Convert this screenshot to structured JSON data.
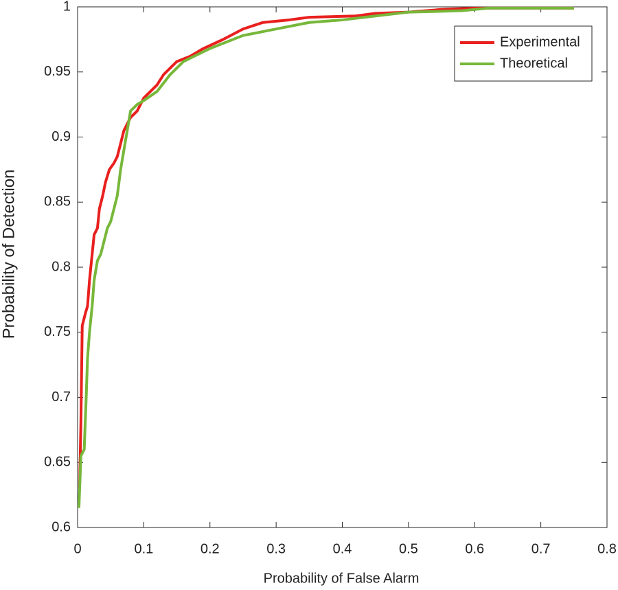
{
  "chart_data": {
    "type": "line",
    "xlabel": "Probability of False Alarm",
    "ylabel": "Probability of Detection",
    "xlim": [
      0,
      0.8
    ],
    "xticks": [
      0,
      0.1,
      0.2,
      0.3,
      0.4,
      0.5,
      0.6,
      0.7,
      0.8
    ],
    "ylim": [
      0.6,
      1
    ],
    "yticks": [
      0.6,
      0.65,
      0.7,
      0.75,
      0.8,
      0.85,
      0.9,
      0.95,
      1
    ],
    "grid": false,
    "legend": "northeast",
    "series": [
      {
        "name": "Experimental",
        "color": "#e8201e",
        "x": [
          0.003,
          0.005,
          0.007,
          0.012,
          0.015,
          0.018,
          0.022,
          0.025,
          0.03,
          0.033,
          0.038,
          0.042,
          0.048,
          0.055,
          0.06,
          0.065,
          0.07,
          0.075,
          0.08,
          0.09,
          0.1,
          0.12,
          0.13,
          0.15,
          0.17,
          0.19,
          0.22,
          0.25,
          0.28,
          0.32,
          0.35,
          0.42,
          0.45,
          0.5,
          0.55,
          0.6,
          0.75
        ],
        "values": [
          0.63,
          0.68,
          0.755,
          0.765,
          0.77,
          0.79,
          0.81,
          0.825,
          0.83,
          0.845,
          0.855,
          0.865,
          0.875,
          0.88,
          0.885,
          0.895,
          0.905,
          0.91,
          0.915,
          0.92,
          0.93,
          0.94,
          0.948,
          0.958,
          0.962,
          0.968,
          0.975,
          0.983,
          0.988,
          0.99,
          0.992,
          0.993,
          0.995,
          0.996,
          0.998,
          0.999,
          0.999
        ]
      },
      {
        "name": "Theoretical",
        "color": "#77b73a",
        "x": [
          0.002,
          0.005,
          0.01,
          0.013,
          0.015,
          0.018,
          0.022,
          0.025,
          0.03,
          0.035,
          0.04,
          0.045,
          0.05,
          0.055,
          0.06,
          0.065,
          0.07,
          0.075,
          0.08,
          0.09,
          0.1,
          0.12,
          0.14,
          0.16,
          0.2,
          0.25,
          0.3,
          0.35,
          0.4,
          0.45,
          0.5,
          0.58,
          0.62,
          0.75
        ],
        "values": [
          0.615,
          0.655,
          0.66,
          0.7,
          0.73,
          0.75,
          0.77,
          0.79,
          0.805,
          0.81,
          0.82,
          0.83,
          0.835,
          0.845,
          0.855,
          0.875,
          0.89,
          0.905,
          0.92,
          0.925,
          0.928,
          0.935,
          0.948,
          0.958,
          0.968,
          0.978,
          0.983,
          0.988,
          0.99,
          0.993,
          0.996,
          0.997,
          0.999,
          0.999
        ]
      }
    ]
  }
}
